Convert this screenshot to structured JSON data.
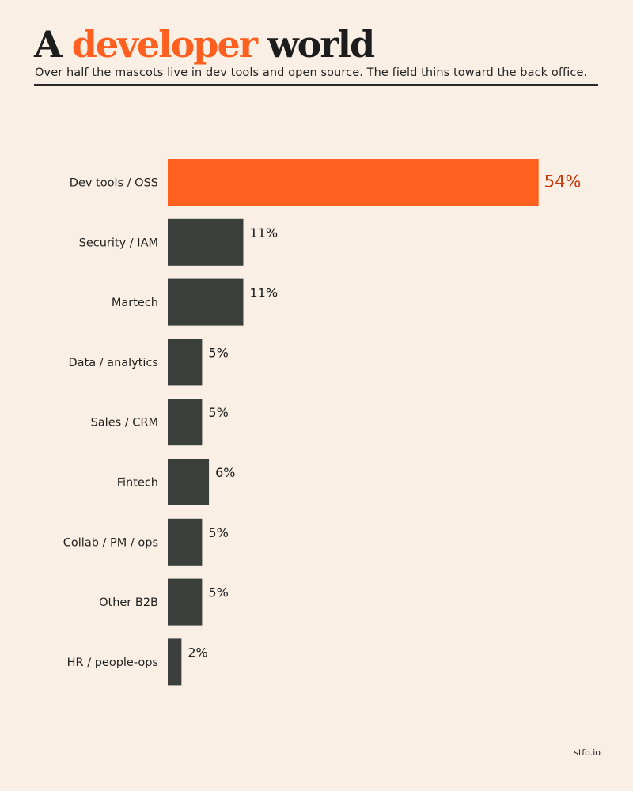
{
  "header": {
    "title_start": "A",
    "title_accent": "developer",
    "title_end": "world",
    "subtitle": "Over half the mascots live in dev tools and open source. The field thins toward the back office."
  },
  "credit": "stfo.io",
  "colors": {
    "background": "#f9efe4",
    "highlight_bar": "#ff5f1f",
    "highlight_label": "#c9380d",
    "bar": "#3a3f3b"
  },
  "chart_data": {
    "type": "bar",
    "orientation": "horizontal",
    "categories": [
      "Dev tools / OSS",
      "Security / IAM",
      "Martech",
      "Data / analytics",
      "Sales / CRM",
      "Fintech",
      "Collab / PM / ops",
      "Other B2B",
      "HR / people-ops"
    ],
    "values": [
      54,
      11,
      11,
      5,
      5,
      6,
      5,
      5,
      2
    ],
    "value_labels": [
      "54%",
      "11%",
      "11%",
      "5%",
      "5%",
      "6%",
      "5%",
      "5%",
      "2%"
    ],
    "highlight_index": 0,
    "unit": "%",
    "grid": false,
    "legend": "none"
  }
}
